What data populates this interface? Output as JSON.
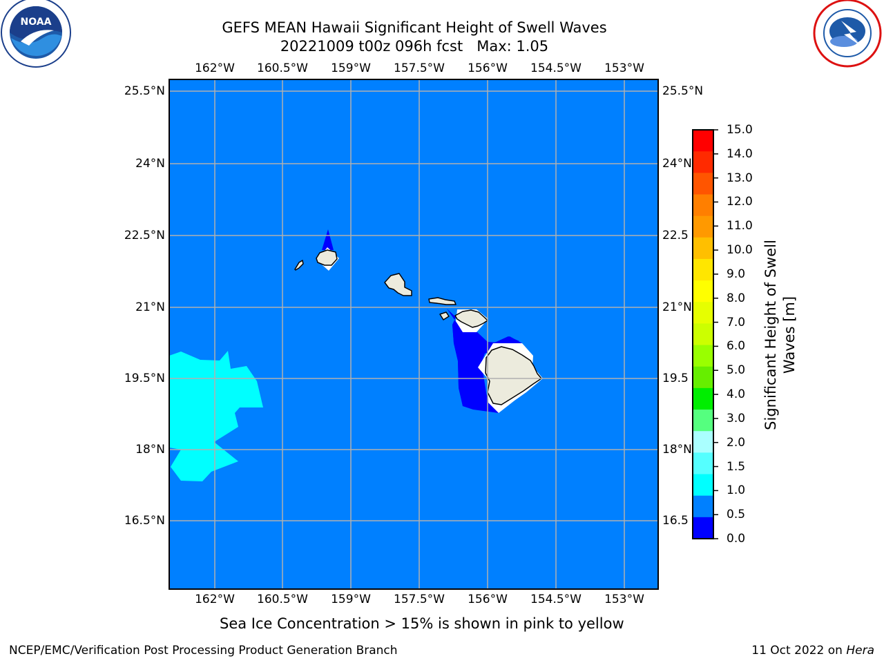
{
  "header": {
    "title": "GEFS MEAN Hawaii Significant Height of Swell Waves",
    "subtitle": "20221009 t00z 096h fcst   Max: 1.05"
  },
  "logos": {
    "left": "noaa-logo",
    "right": "nws-logo"
  },
  "map": {
    "lon_labels": [
      "162°W",
      "160.5°W",
      "159°W",
      "157.5°W",
      "156°W",
      "154.5°W",
      "153°W"
    ],
    "lat_labels": [
      "25.5°N",
      "24°N",
      "22.5°N",
      "21°N",
      "19.5°N",
      "18°N",
      "16.5°N"
    ],
    "lat_labels_right": [
      "25.5°N",
      "24°N",
      "22.5",
      "21°N",
      "19.5",
      "18°N",
      "16.5"
    ],
    "background_color": "#0080ff",
    "land_color": "#ecebdd"
  },
  "colorbar": {
    "title": "Significant Height of Swell Waves [m]",
    "ticks": [
      "15.0",
      "14.0",
      "13.0",
      "12.0",
      "11.0",
      "10.0",
      "9.0",
      "8.0",
      "7.0",
      "6.0",
      "5.0",
      "4.0",
      "3.0",
      "2.0",
      "1.5",
      "1.0",
      "0.5",
      "0.0"
    ],
    "colors": [
      "#ff0000",
      "#ff2a00",
      "#ff5500",
      "#ff7f00",
      "#ff9900",
      "#ffbf00",
      "#ffe600",
      "#ffff00",
      "#e6ff00",
      "#ccff00",
      "#99ff00",
      "#66ee00",
      "#00ee00",
      "#55ff7f",
      "#aaffff",
      "#55ffff",
      "#00ffff",
      "#0080ff",
      "#0000ff"
    ]
  },
  "note": "Sea Ice Concentration > 15% is shown in pink to yellow",
  "footer": {
    "left": "NCEP/EMC/Verification Post Processing Product Generation Branch",
    "right_date": "11 Oct 2022 on",
    "right_host": "Hera"
  }
}
